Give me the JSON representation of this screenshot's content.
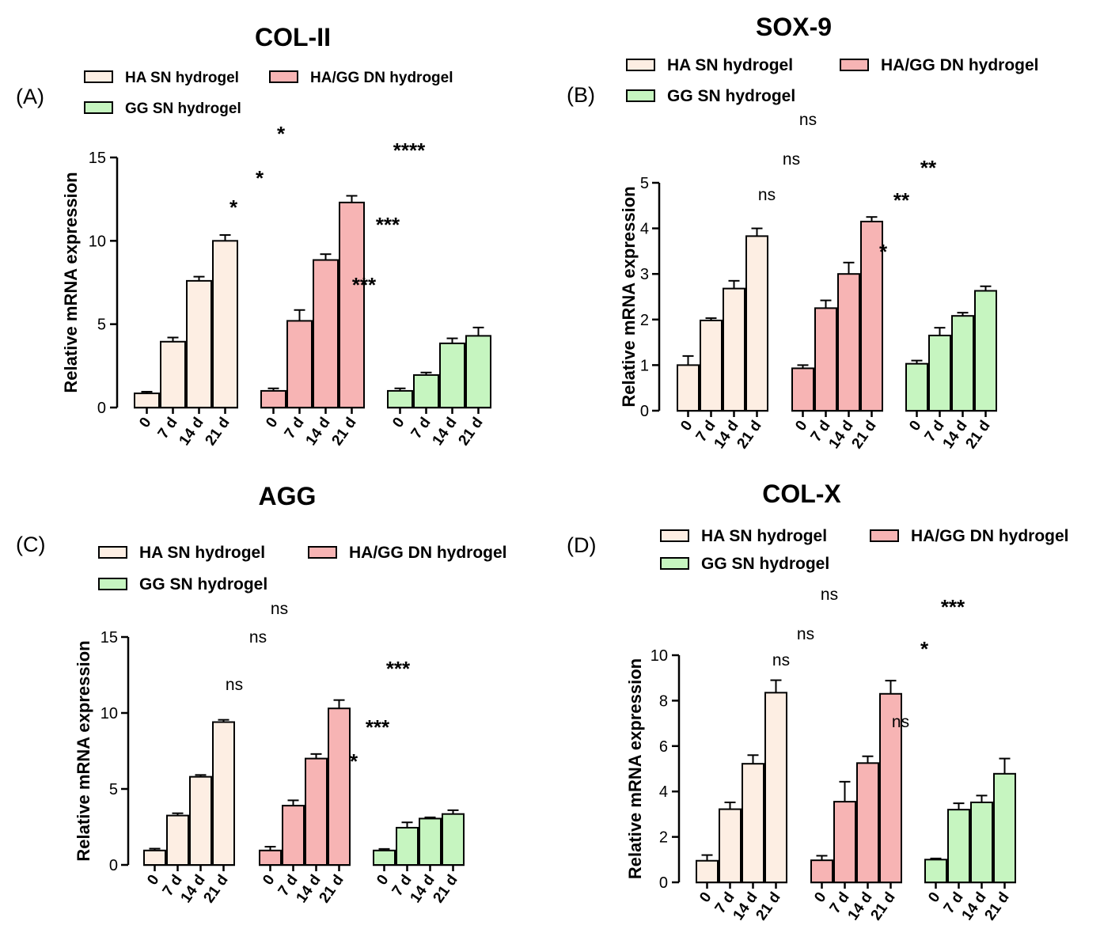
{
  "colors": {
    "ha_sn": "#fdeee3",
    "ha_gg_dn": "#f7b4b4",
    "gg_sn": "#c6f5c0",
    "stroke": "#000000"
  },
  "chart_data": [
    {
      "type": "bar",
      "panel_label": "(A)",
      "title": "COL-II",
      "ylabel": "Relative mRNA expression",
      "ylim": [
        0,
        15
      ],
      "yticks": [
        "0",
        "5",
        "10",
        "15"
      ],
      "legend": [
        "HA SN hydrogel",
        "HA/GG DN hydrogel",
        "GG SN hydrogel"
      ],
      "categories": [
        "0",
        "7 d",
        "14 d",
        "21 d"
      ],
      "series": [
        {
          "name": "HA SN hydrogel",
          "values": [
            0.85,
            3.95,
            7.6,
            10.0
          ],
          "errors": [
            0.1,
            0.25,
            0.25,
            0.35
          ]
        },
        {
          "name": "HA/GG DN hydrogel",
          "values": [
            1.0,
            5.2,
            8.85,
            12.3
          ],
          "errors": [
            0.15,
            0.65,
            0.35,
            0.4
          ]
        },
        {
          "name": "GG SN hydrogel",
          "values": [
            1.0,
            1.95,
            3.85,
            4.3
          ],
          "errors": [
            0.15,
            0.15,
            0.3,
            0.5
          ]
        }
      ],
      "annotations": [
        "*",
        "*",
        "*",
        "****",
        "***",
        "***"
      ]
    },
    {
      "type": "bar",
      "panel_label": "(B)",
      "title": "SOX-9",
      "ylabel": "Relative mRNA expression",
      "ylim": [
        0,
        5
      ],
      "yticks": [
        "0",
        "1",
        "2",
        "3",
        "4",
        "5"
      ],
      "legend": [
        "HA SN hydrogel",
        "HA/GG DN hydrogel",
        "GG SN hydrogel"
      ],
      "categories": [
        "0",
        "7 d",
        "14 d",
        "21 d"
      ],
      "series": [
        {
          "name": "HA SN hydrogel",
          "values": [
            1.0,
            1.98,
            2.68,
            3.83
          ],
          "errors": [
            0.2,
            0.05,
            0.17,
            0.17
          ]
        },
        {
          "name": "HA/GG DN hydrogel",
          "values": [
            0.93,
            2.25,
            3.0,
            4.15
          ],
          "errors": [
            0.07,
            0.17,
            0.25,
            0.1
          ]
        },
        {
          "name": "GG SN hydrogel",
          "values": [
            1.03,
            1.65,
            2.08,
            2.63
          ],
          "errors": [
            0.07,
            0.17,
            0.07,
            0.1
          ]
        }
      ],
      "annotations": [
        "ns",
        "ns",
        "ns",
        "**",
        "**",
        "*"
      ]
    },
    {
      "type": "bar",
      "panel_label": "(C)",
      "title": "AGG",
      "ylabel": "Relative mRNA expression",
      "ylim": [
        0,
        15
      ],
      "yticks": [
        "0",
        "5",
        "10",
        "15"
      ],
      "legend": [
        "HA SN hydrogel",
        "HA/GG DN hydrogel",
        "GG SN hydrogel"
      ],
      "categories": [
        "0",
        "7 d",
        "14 d",
        "21 d"
      ],
      "series": [
        {
          "name": "HA SN hydrogel",
          "values": [
            0.95,
            3.25,
            5.8,
            9.4
          ],
          "errors": [
            0.12,
            0.15,
            0.12,
            0.15
          ]
        },
        {
          "name": "HA/GG DN hydrogel",
          "values": [
            0.95,
            3.9,
            7.0,
            10.3
          ],
          "errors": [
            0.25,
            0.35,
            0.3,
            0.55
          ]
        },
        {
          "name": "GG SN hydrogel",
          "values": [
            0.95,
            2.45,
            3.05,
            3.35
          ],
          "errors": [
            0.1,
            0.35,
            0.08,
            0.25
          ]
        }
      ],
      "annotations": [
        "ns",
        "ns",
        "ns",
        "***",
        "***",
        "*"
      ]
    },
    {
      "type": "bar",
      "panel_label": "(D)",
      "title": "COL-X",
      "ylabel": "Relative mRNA expression",
      "ylim": [
        0,
        10
      ],
      "yticks": [
        "0",
        "2",
        "4",
        "6",
        "8",
        "10"
      ],
      "legend": [
        "HA SN hydrogel",
        "HA/GG DN hydrogel",
        "GG SN hydrogel"
      ],
      "categories": [
        "0",
        "7 d",
        "14 d",
        "21 d"
      ],
      "series": [
        {
          "name": "HA SN hydrogel",
          "values": [
            0.95,
            3.22,
            5.22,
            8.35
          ],
          "errors": [
            0.25,
            0.3,
            0.38,
            0.55
          ]
        },
        {
          "name": "HA/GG DN hydrogel",
          "values": [
            0.97,
            3.55,
            5.25,
            8.3
          ],
          "errors": [
            0.2,
            0.88,
            0.3,
            0.58
          ]
        },
        {
          "name": "GG SN hydrogel",
          "values": [
            1.0,
            3.2,
            3.52,
            4.78
          ],
          "errors": [
            0.05,
            0.28,
            0.3,
            0.67
          ]
        }
      ],
      "annotations": [
        "ns",
        "ns",
        "ns",
        "ns",
        "***",
        "*"
      ]
    }
  ]
}
